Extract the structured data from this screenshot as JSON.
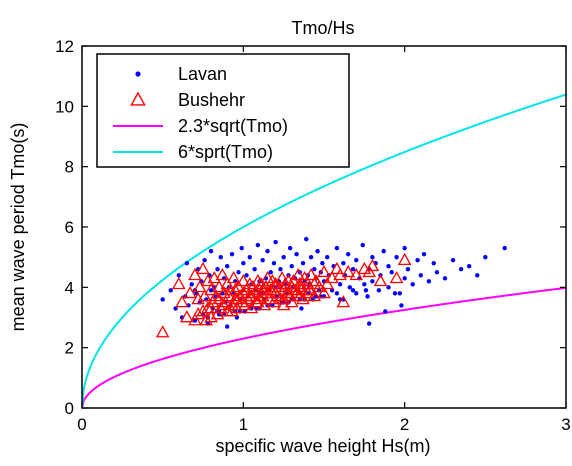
{
  "chart_data": {
    "type": "scatter",
    "title": "Tmo/Hs",
    "xlabel": "specific wave height Hs(m)",
    "ylabel": "mean wave period Tmo(s)",
    "xlim": [
      0,
      3
    ],
    "ylim": [
      0,
      12
    ],
    "xticks": [
      0,
      1,
      2,
      3
    ],
    "yticks": [
      0,
      2,
      4,
      6,
      8,
      10,
      12
    ],
    "grid": false,
    "legend_position": "top-left",
    "series": [
      {
        "name": "Lavan",
        "kind": "points",
        "marker": "dot",
        "color": "#0000ff",
        "x": [
          0.5,
          0.55,
          0.58,
          0.6,
          0.62,
          0.64,
          0.65,
          0.66,
          0.68,
          0.7,
          0.71,
          0.72,
          0.73,
          0.74,
          0.75,
          0.76,
          0.77,
          0.78,
          0.79,
          0.8,
          0.8,
          0.81,
          0.82,
          0.83,
          0.84,
          0.85,
          0.86,
          0.87,
          0.88,
          0.89,
          0.9,
          0.9,
          0.91,
          0.92,
          0.93,
          0.94,
          0.95,
          0.96,
          0.97,
          0.98,
          0.99,
          1.0,
          1.0,
          1.01,
          1.02,
          1.03,
          1.04,
          1.05,
          1.06,
          1.07,
          1.08,
          1.09,
          1.1,
          1.1,
          1.11,
          1.12,
          1.13,
          1.14,
          1.15,
          1.16,
          1.17,
          1.18,
          1.19,
          1.2,
          1.2,
          1.21,
          1.22,
          1.23,
          1.24,
          1.25,
          1.26,
          1.27,
          1.28,
          1.29,
          1.3,
          1.3,
          1.31,
          1.32,
          1.33,
          1.34,
          1.35,
          1.36,
          1.37,
          1.38,
          1.39,
          1.4,
          1.4,
          1.41,
          1.42,
          1.43,
          1.44,
          1.45,
          1.46,
          1.47,
          1.48,
          1.49,
          1.5,
          1.5,
          1.52,
          1.53,
          1.55,
          1.56,
          1.58,
          1.6,
          1.6,
          1.62,
          1.63,
          1.65,
          1.66,
          1.68,
          1.7,
          1.7,
          1.72,
          1.74,
          1.75,
          1.77,
          1.78,
          1.8,
          1.8,
          1.82,
          1.84,
          1.85,
          1.87,
          1.9,
          1.9,
          1.92,
          1.95,
          1.97,
          2.0,
          2.0,
          2.02,
          2.05,
          2.08,
          2.1,
          2.12,
          2.15,
          2.18,
          2.2,
          2.25,
          2.3,
          2.35,
          2.4,
          2.45,
          2.5,
          2.62,
          0.85,
          0.95,
          1.05,
          1.15,
          1.25,
          1.35,
          1.45,
          0.78,
          0.88,
          0.98,
          1.08,
          1.18,
          1.28,
          1.38,
          1.48,
          1.58,
          1.68,
          1.78,
          1.88,
          1.98,
          0.7,
          1.62,
          1.76,
          1.94
        ],
        "y": [
          3.6,
          3.9,
          3.3,
          4.4,
          3.0,
          3.7,
          4.8,
          3.4,
          4.1,
          2.9,
          3.8,
          4.6,
          3.5,
          4.2,
          3.1,
          4.9,
          3.6,
          2.8,
          4.4,
          3.9,
          5.2,
          3.3,
          4.0,
          3.7,
          4.6,
          3.2,
          5.0,
          3.8,
          4.3,
          3.5,
          2.7,
          4.7,
          4.0,
          3.4,
          5.1,
          3.8,
          4.2,
          3.0,
          4.5,
          3.6,
          5.3,
          3.9,
          4.8,
          3.2,
          4.4,
          3.7,
          5.0,
          4.1,
          3.5,
          4.6,
          3.9,
          5.4,
          3.3,
          4.2,
          3.8,
          4.9,
          3.6,
          4.3,
          5.2,
          3.9,
          4.5,
          3.4,
          4.8,
          4.0,
          5.5,
          3.7,
          4.2,
          4.6,
          3.5,
          5.0,
          4.1,
          3.8,
          4.4,
          5.3,
          3.6,
          4.7,
          4.0,
          4.3,
          5.1,
          3.9,
          4.5,
          3.3,
          4.8,
          4.2,
          5.6,
          3.8,
          4.4,
          4.1,
          5.0,
          3.6,
          4.6,
          4.3,
          5.2,
          3.9,
          4.5,
          4.8,
          3.7,
          4.2,
          5.0,
          4.4,
          3.9,
          4.7,
          5.3,
          4.1,
          3.6,
          4.8,
          4.4,
          5.1,
          4.0,
          4.6,
          3.8,
          4.9,
          4.3,
          5.4,
          4.1,
          3.7,
          4.6,
          5.0,
          4.2,
          4.8,
          3.9,
          4.4,
          5.2,
          4.0,
          4.7,
          4.5,
          5.0,
          3.8,
          4.3,
          5.3,
          4.6,
          4.1,
          4.9,
          4.4,
          5.1,
          4.2,
          4.8,
          4.5,
          4.3,
          4.9,
          4.6,
          4.7,
          4.4,
          5.0,
          5.3,
          3.1,
          3.2,
          3.3,
          3.4,
          3.5,
          3.6,
          3.7,
          3.0,
          3.1,
          3.2,
          3.3,
          3.4,
          3.5,
          3.6,
          3.7,
          3.8,
          3.9,
          2.8,
          3.2,
          3.4,
          3.9,
          3.6,
          3.9,
          3.8
        ]
      },
      {
        "name": "Bushehr",
        "kind": "points",
        "marker": "triangle",
        "color": "#ff0000",
        "x": [
          0.5,
          0.6,
          0.62,
          0.65,
          0.67,
          0.7,
          0.7,
          0.72,
          0.73,
          0.75,
          0.75,
          0.76,
          0.78,
          0.78,
          0.8,
          0.8,
          0.81,
          0.82,
          0.83,
          0.84,
          0.85,
          0.85,
          0.86,
          0.87,
          0.88,
          0.89,
          0.9,
          0.9,
          0.91,
          0.92,
          0.93,
          0.94,
          0.95,
          0.95,
          0.96,
          0.97,
          0.98,
          0.99,
          1.0,
          1.0,
          1.01,
          1.02,
          1.03,
          1.04,
          1.05,
          1.05,
          1.06,
          1.07,
          1.08,
          1.09,
          1.1,
          1.1,
          1.11,
          1.12,
          1.13,
          1.14,
          1.15,
          1.15,
          1.16,
          1.17,
          1.18,
          1.19,
          1.2,
          1.2,
          1.21,
          1.22,
          1.23,
          1.24,
          1.25,
          1.25,
          1.26,
          1.27,
          1.28,
          1.29,
          1.3,
          1.3,
          1.31,
          1.32,
          1.33,
          1.34,
          1.35,
          1.35,
          1.36,
          1.37,
          1.38,
          1.39,
          1.4,
          1.4,
          1.42,
          1.44,
          1.45,
          1.47,
          1.5,
          1.5,
          1.52,
          1.55,
          1.58,
          1.6,
          1.62,
          1.65,
          1.7,
          1.75,
          1.78,
          1.8,
          1.85,
          1.95,
          2.0,
          0.72,
          0.8,
          0.88,
          0.96,
          1.04,
          1.12,
          1.2,
          1.28,
          1.36,
          1.44,
          0.77,
          0.93,
          1.09,
          1.25,
          1.41
        ],
        "y": [
          2.5,
          4.1,
          3.5,
          3.0,
          3.8,
          4.4,
          2.9,
          3.6,
          4.0,
          3.2,
          4.6,
          3.7,
          3.3,
          4.2,
          3.9,
          3.0,
          3.5,
          4.3,
          3.7,
          3.1,
          4.0,
          3.6,
          3.3,
          4.4,
          3.8,
          3.5,
          3.2,
          4.1,
          3.7,
          3.9,
          3.4,
          4.3,
          3.6,
          3.9,
          3.3,
          4.0,
          3.7,
          3.5,
          3.8,
          4.2,
          3.4,
          3.9,
          3.6,
          4.1,
          3.7,
          3.3,
          4.0,
          3.8,
          3.5,
          4.2,
          3.6,
          3.9,
          4.1,
          3.7,
          3.4,
          4.0,
          3.8,
          4.3,
          3.6,
          3.9,
          4.2,
          3.5,
          3.8,
          4.1,
          3.7,
          4.0,
          3.6,
          4.3,
          3.9,
          3.4,
          4.1,
          3.8,
          4.2,
          3.7,
          4.0,
          3.5,
          4.2,
          3.9,
          3.8,
          4.4,
          3.7,
          4.1,
          4.0,
          3.6,
          4.3,
          3.9,
          4.1,
          3.8,
          4.4,
          3.7,
          4.2,
          4.0,
          4.5,
          3.8,
          4.1,
          4.3,
          4.6,
          4.4,
          3.5,
          4.5,
          4.4,
          4.6,
          4.5,
          4.7,
          4.2,
          4.3,
          4.9,
          3.1,
          3.3,
          3.4,
          3.6,
          3.7,
          3.9,
          4.0,
          3.8,
          3.9,
          4.1,
          2.9,
          3.2,
          3.5,
          3.6,
          3.9
        ]
      },
      {
        "name": "2.3*sqrt(Tmo)",
        "kind": "curve",
        "color": "#ff00ff",
        "coefficient": 2.3
      },
      {
        "name": "6*sprt(Tmo)",
        "kind": "curve",
        "color": "#00e5e5",
        "coefficient": 6
      }
    ]
  }
}
